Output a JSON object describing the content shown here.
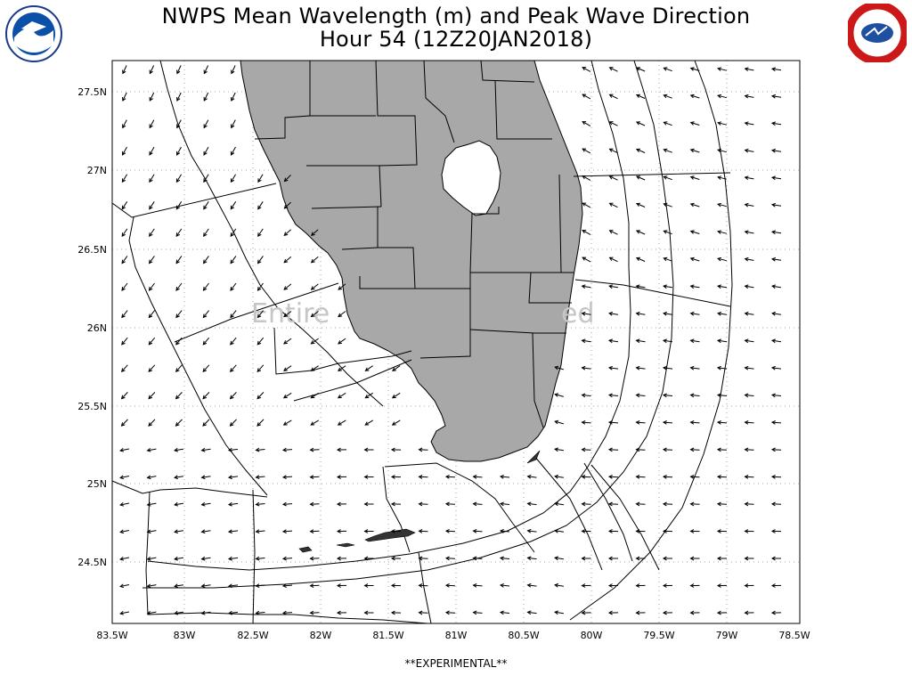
{
  "title_line1": "NWPS Mean Wavelength (m) and Peak Wave Direction",
  "title_line2": "Hour 54 (12Z20JAN2018)",
  "footer": "**EXPERIMENTAL**",
  "watermark": "Entire ... ed",
  "lat_labels": [
    "27.5N",
    "27N",
    "26.5N",
    "26N",
    "25.5N",
    "25N",
    "24.5N"
  ],
  "lon_labels": [
    "83.5W",
    "83W",
    "82.5W",
    "82W",
    "81.5W",
    "81W",
    "80.5W",
    "80W",
    "79.5W",
    "79W",
    "78.5W"
  ],
  "logos": {
    "left": "noaa-logo",
    "right": "national-weather-service-logo"
  },
  "colors": {
    "land": "#a8a8a8",
    "lake": "#ffffff",
    "contour": "#000000",
    "grid": "#a0a0a0"
  },
  "wave_direction": {
    "offshore_west": "toward south-southwest",
    "gulf_stream_east": "toward west"
  }
}
